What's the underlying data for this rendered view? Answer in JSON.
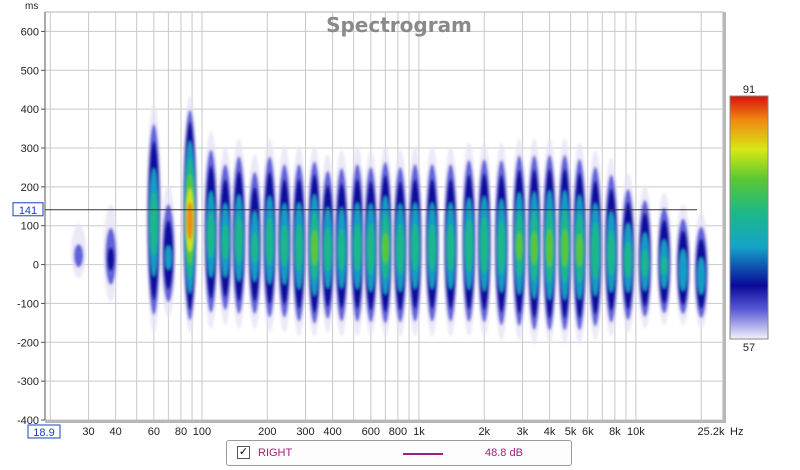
{
  "chart_data": {
    "type": "heatmap",
    "title": "Spectrogram",
    "ylabel": "ms",
    "xlabel": "Hz",
    "x_scale": "log",
    "xlim": [
      18.9,
      25200
    ],
    "ylim": [
      -400,
      650
    ],
    "y_ticks": [
      600,
      500,
      400,
      300,
      200,
      100,
      0,
      -100,
      -200,
      -300,
      -400
    ],
    "x_ticks": [
      {
        "value": 30,
        "label": "30"
      },
      {
        "value": 40,
        "label": "40"
      },
      {
        "value": 60,
        "label": "60"
      },
      {
        "value": 80,
        "label": "80"
      },
      {
        "value": 100,
        "label": "100"
      },
      {
        "value": 200,
        "label": "200"
      },
      {
        "value": 300,
        "label": "300"
      },
      {
        "value": 400,
        "label": "400"
      },
      {
        "value": 600,
        "label": "600"
      },
      {
        "value": 800,
        "label": "800"
      },
      {
        "value": 1000,
        "label": "1k"
      },
      {
        "value": 2000,
        "label": "2k"
      },
      {
        "value": 3000,
        "label": "3k"
      },
      {
        "value": 4000,
        "label": "4k"
      },
      {
        "value": 5000,
        "label": "5k"
      },
      {
        "value": 6000,
        "label": "6k"
      },
      {
        "value": 8000,
        "label": "8k"
      },
      {
        "value": 10000,
        "label": "10k"
      },
      {
        "value": 25200,
        "label": "25.2k"
      }
    ],
    "x_start_label": "18.9",
    "cursor": {
      "y": 141,
      "label": "141"
    },
    "colorbar": {
      "max": 91,
      "min": 57,
      "max_label": "91",
      "min_label": "57"
    },
    "grid": true,
    "legend_position": "bottom-center",
    "colors": {
      "title": "#8a8a8a",
      "grid": "#c8c8c8",
      "cursor_label": "#1a3fc4",
      "series": "#a0207f"
    },
    "series": [
      {
        "name": "RIGHT",
        "value_label": "48.8 dB",
        "blobs": [
          {
            "f": 27,
            "t_min": -20,
            "t_max": 120,
            "peak": 0.18
          },
          {
            "f": 38,
            "t_min": -80,
            "t_max": 170,
            "peak": 0.25
          },
          {
            "f": 60,
            "t_min": -160,
            "t_max": 430,
            "peak": 0.62
          },
          {
            "f": 70,
            "t_min": -120,
            "t_max": 220,
            "peak": 0.4
          },
          {
            "f": 88,
            "t_min": -160,
            "t_max": 450,
            "peak": 0.92
          },
          {
            "f": 110,
            "t_min": -150,
            "t_max": 360,
            "peak": 0.58
          },
          {
            "f": 128,
            "t_min": -140,
            "t_max": 320,
            "peak": 0.56
          },
          {
            "f": 148,
            "t_min": -150,
            "t_max": 340,
            "peak": 0.6
          },
          {
            "f": 175,
            "t_min": -150,
            "t_max": 300,
            "peak": 0.55
          },
          {
            "f": 205,
            "t_min": -160,
            "t_max": 340,
            "peak": 0.6
          },
          {
            "f": 240,
            "t_min": -160,
            "t_max": 320,
            "peak": 0.58
          },
          {
            "f": 280,
            "t_min": -170,
            "t_max": 320,
            "peak": 0.6
          },
          {
            "f": 330,
            "t_min": -170,
            "t_max": 320,
            "peak": 0.7
          },
          {
            "f": 380,
            "t_min": -160,
            "t_max": 300,
            "peak": 0.6
          },
          {
            "f": 440,
            "t_min": -170,
            "t_max": 310,
            "peak": 0.58
          },
          {
            "f": 520,
            "t_min": -170,
            "t_max": 320,
            "peak": 0.6
          },
          {
            "f": 600,
            "t_min": -170,
            "t_max": 310,
            "peak": 0.62
          },
          {
            "f": 700,
            "t_min": -170,
            "t_max": 320,
            "peak": 0.68
          },
          {
            "f": 820,
            "t_min": -170,
            "t_max": 310,
            "peak": 0.62
          },
          {
            "f": 960,
            "t_min": -170,
            "t_max": 320,
            "peak": 0.6
          },
          {
            "f": 1150,
            "t_min": -170,
            "t_max": 320,
            "peak": 0.6
          },
          {
            "f": 1400,
            "t_min": -170,
            "t_max": 320,
            "peak": 0.6
          },
          {
            "f": 1700,
            "t_min": -170,
            "t_max": 330,
            "peak": 0.62
          },
          {
            "f": 2000,
            "t_min": -170,
            "t_max": 330,
            "peak": 0.64
          },
          {
            "f": 2400,
            "t_min": -180,
            "t_max": 330,
            "peak": 0.62
          },
          {
            "f": 2900,
            "t_min": -180,
            "t_max": 340,
            "peak": 0.66
          },
          {
            "f": 3400,
            "t_min": -190,
            "t_max": 340,
            "peak": 0.68
          },
          {
            "f": 4000,
            "t_min": -190,
            "t_max": 340,
            "peak": 0.7
          },
          {
            "f": 4700,
            "t_min": -190,
            "t_max": 340,
            "peak": 0.7
          },
          {
            "f": 5500,
            "t_min": -190,
            "t_max": 330,
            "peak": 0.68
          },
          {
            "f": 6500,
            "t_min": -180,
            "t_max": 310,
            "peak": 0.64
          },
          {
            "f": 7700,
            "t_min": -170,
            "t_max": 290,
            "peak": 0.6
          },
          {
            "f": 9200,
            "t_min": -160,
            "t_max": 250,
            "peak": 0.58
          },
          {
            "f": 11000,
            "t_min": -150,
            "t_max": 220,
            "peak": 0.55
          },
          {
            "f": 13500,
            "t_min": -140,
            "t_max": 200,
            "peak": 0.52
          },
          {
            "f": 16500,
            "t_min": -140,
            "t_max": 170,
            "peak": 0.5
          },
          {
            "f": 20000,
            "t_min": -150,
            "t_max": 150,
            "peak": 0.48
          }
        ]
      }
    ]
  }
}
